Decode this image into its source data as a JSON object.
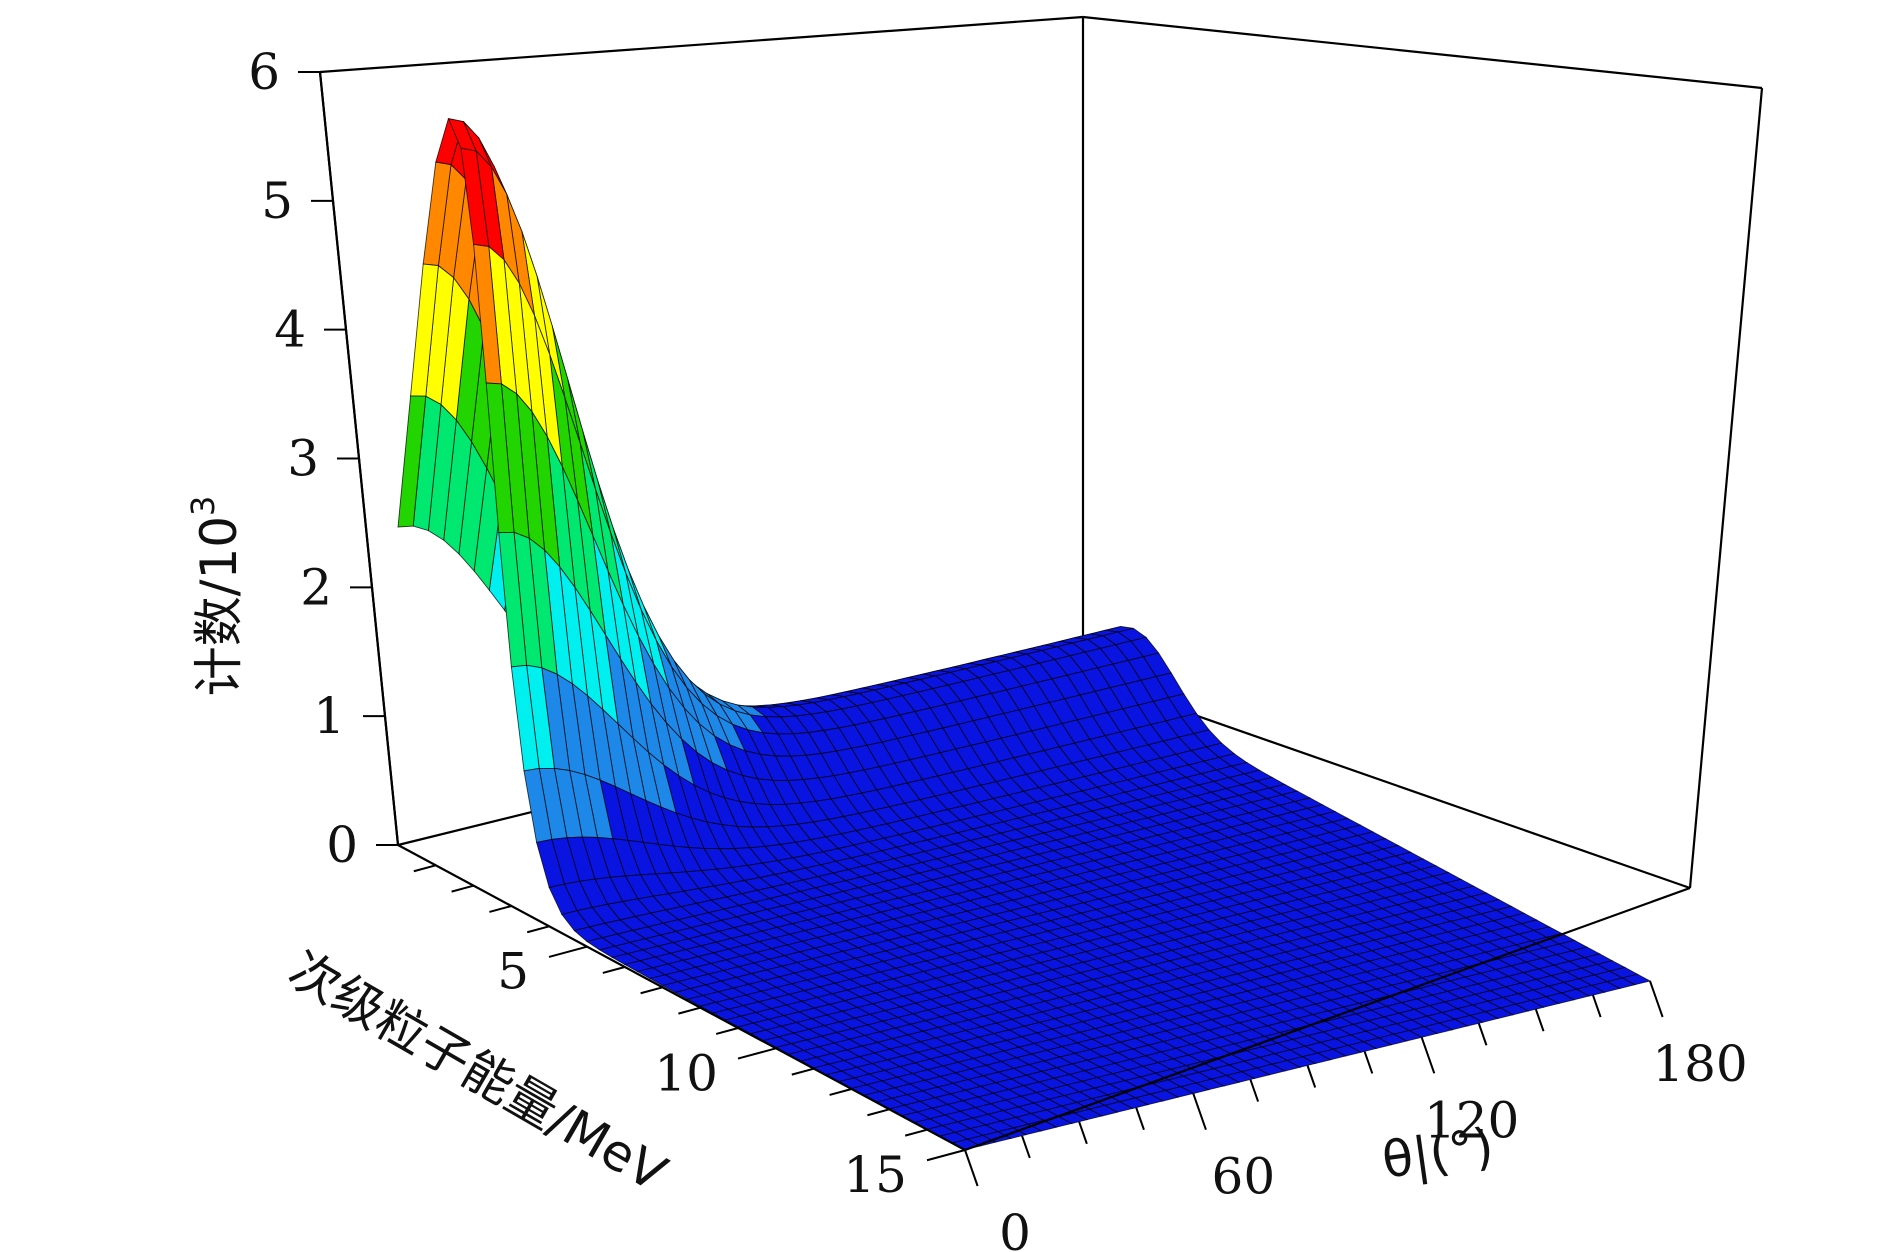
{
  "chart_data": {
    "type": "surface3d",
    "title": "",
    "zlabel": "计数/10",
    "zlabel_sup": "3",
    "xlabel": "次级粒子能量/MeV",
    "ylabel": "θ|(°)",
    "xlim": [
      0,
      15
    ],
    "ylim": [
      0,
      180
    ],
    "zlim": [
      0,
      6
    ],
    "x_ticks": [
      "5",
      "10",
      "15"
    ],
    "x_tick_values": [
      5,
      10,
      15
    ],
    "y_ticks": [
      "0",
      "60",
      "120",
      "180"
    ],
    "y_tick_values": [
      0,
      60,
      120,
      180
    ],
    "z_ticks": [
      "0",
      "1",
      "2",
      "3",
      "4",
      "5",
      "6"
    ],
    "z_tick_values": [
      0,
      1,
      2,
      3,
      4,
      5,
      6
    ],
    "surface_peak": {
      "energy_MeV": 1.4,
      "theta_deg": 0,
      "count_1e3": 5.8
    },
    "contour_colors": [
      "#0a14e0",
      "#1e88e8",
      "#00f0f0",
      "#00e870",
      "#22d400",
      "#ffff00",
      "#ff8800",
      "#ff0000"
    ],
    "grid": false
  }
}
